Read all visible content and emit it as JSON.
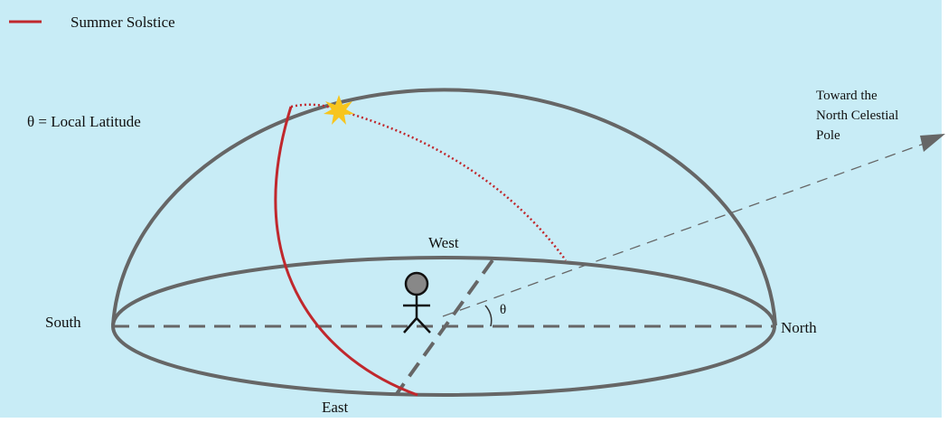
{
  "legend": {
    "label": "Summer Solstice"
  },
  "latitude_label": "θ = Local Latitude",
  "pole_label": [
    "Toward the",
    "North Celestial",
    "Pole"
  ],
  "directions": {
    "west": "West",
    "south": "South",
    "north": "North",
    "east": "East"
  },
  "angle_label": "θ"
}
